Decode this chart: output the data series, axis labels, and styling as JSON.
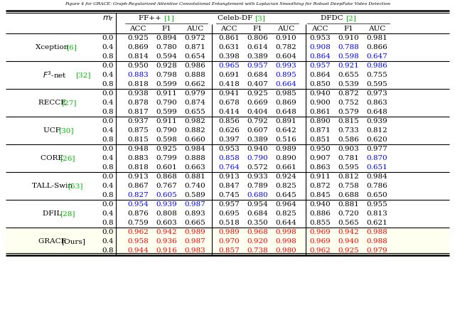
{
  "title": "Figure 4 for GRACE: Graph-Regularized Attentive Convolutional Entanglement with Laplacian Smoothing for Robust DeepFake Video Detection",
  "methods": [
    "Xception [6]",
    "F3-net [32]",
    "RECCE [27]",
    "UCF [30]",
    "CORE [26]",
    "TALL-Swin [53]",
    "DFIL [28]",
    "GRACE [Ours]"
  ],
  "mr_values": [
    "0.0",
    "0.4",
    "0.8"
  ],
  "dataset_labels": [
    "FF++",
    "Celeb-DF",
    "DFDC"
  ],
  "dataset_refs": [
    "1",
    "3",
    "2"
  ],
  "metrics": [
    "ACC",
    "F1",
    "AUC",
    "ACC",
    "F1",
    "AUC",
    "ACC",
    "F1",
    "AUC"
  ],
  "data": {
    "Xception [6]": [
      [
        0.925,
        0.894,
        0.972,
        0.861,
        0.806,
        0.91,
        0.953,
        0.91,
        0.981
      ],
      [
        0.869,
        0.78,
        0.871,
        0.631,
        0.614,
        0.782,
        0.908,
        0.788,
        0.866
      ],
      [
        0.814,
        0.594,
        0.654,
        0.398,
        0.389,
        0.604,
        0.864,
        0.598,
        0.647
      ]
    ],
    "F3-net [32]": [
      [
        0.95,
        0.928,
        0.986,
        0.965,
        0.957,
        0.993,
        0.957,
        0.921,
        0.986
      ],
      [
        0.883,
        0.798,
        0.888,
        0.691,
        0.684,
        0.895,
        0.864,
        0.655,
        0.755
      ],
      [
        0.818,
        0.599,
        0.662,
        0.418,
        0.407,
        0.664,
        0.85,
        0.539,
        0.595
      ]
    ],
    "RECCE [27]": [
      [
        0.938,
        0.911,
        0.979,
        0.941,
        0.925,
        0.985,
        0.94,
        0.872,
        0.973
      ],
      [
        0.878,
        0.79,
        0.874,
        0.678,
        0.669,
        0.869,
        0.9,
        0.752,
        0.863
      ],
      [
        0.817,
        0.599,
        0.655,
        0.414,
        0.404,
        0.648,
        0.861,
        0.579,
        0.648
      ]
    ],
    "UCF [30]": [
      [
        0.937,
        0.911,
        0.982,
        0.856,
        0.792,
        0.891,
        0.89,
        0.815,
        0.939
      ],
      [
        0.875,
        0.79,
        0.882,
        0.626,
        0.607,
        0.642,
        0.871,
        0.733,
        0.812
      ],
      [
        0.815,
        0.598,
        0.66,
        0.397,
        0.389,
        0.516,
        0.851,
        0.586,
        0.62
      ]
    ],
    "CORE [26]": [
      [
        0.948,
        0.925,
        0.984,
        0.953,
        0.94,
        0.989,
        0.95,
        0.903,
        0.977
      ],
      [
        0.883,
        0.799,
        0.888,
        0.858,
        0.79,
        0.89,
        0.907,
        0.781,
        0.87
      ],
      [
        0.818,
        0.601,
        0.663,
        0.764,
        0.572,
        0.661,
        0.863,
        0.595,
        0.651
      ]
    ],
    "TALL-Swin [53]": [
      [
        0.913,
        0.868,
        0.881,
        0.913,
        0.933,
        0.924,
        0.911,
        0.812,
        0.984
      ],
      [
        0.867,
        0.767,
        0.74,
        0.847,
        0.789,
        0.825,
        0.872,
        0.758,
        0.786
      ],
      [
        0.827,
        0.605,
        0.589,
        0.745,
        0.68,
        0.645,
        0.845,
        0.688,
        0.65
      ]
    ],
    "DFIL [28]": [
      [
        0.954,
        0.939,
        0.987,
        0.957,
        0.954,
        0.964,
        0.94,
        0.881,
        0.955
      ],
      [
        0.876,
        0.808,
        0.893,
        0.695,
        0.684,
        0.825,
        0.886,
        0.72,
        0.813
      ],
      [
        0.759,
        0.603,
        0.665,
        0.518,
        0.35,
        0.644,
        0.855,
        0.565,
        0.621
      ]
    ],
    "GRACE [Ours]": [
      [
        0.962,
        0.942,
        0.989,
        0.989,
        0.968,
        0.998,
        0.969,
        0.942,
        0.988
      ],
      [
        0.958,
        0.936,
        0.987,
        0.97,
        0.92,
        0.998,
        0.969,
        0.94,
        0.988
      ],
      [
        0.944,
        0.916,
        0.983,
        0.857,
        0.738,
        0.98,
        0.962,
        0.925,
        0.979
      ]
    ]
  },
  "blue_cells": {
    "Xception [6]": {
      "1": [
        6,
        7
      ],
      "2": [
        6,
        7,
        8
      ]
    },
    "F3-net [32]": {
      "0": [
        3,
        4,
        5,
        6,
        7,
        8
      ],
      "1": [
        0,
        5
      ],
      "2": [
        5
      ]
    },
    "CORE [26]": {
      "1": [
        3,
        4,
        8
      ],
      "2": [
        3,
        8
      ]
    },
    "TALL-Swin [53]": {
      "2": [
        0,
        1,
        4
      ]
    },
    "DFIL [28]": {
      "0": [
        0,
        1,
        2
      ]
    }
  },
  "grace_bg": "#FFFFF0",
  "green": "#00BB00",
  "blue": "#0000FF",
  "red": "#FF0000",
  "black": "#000000"
}
